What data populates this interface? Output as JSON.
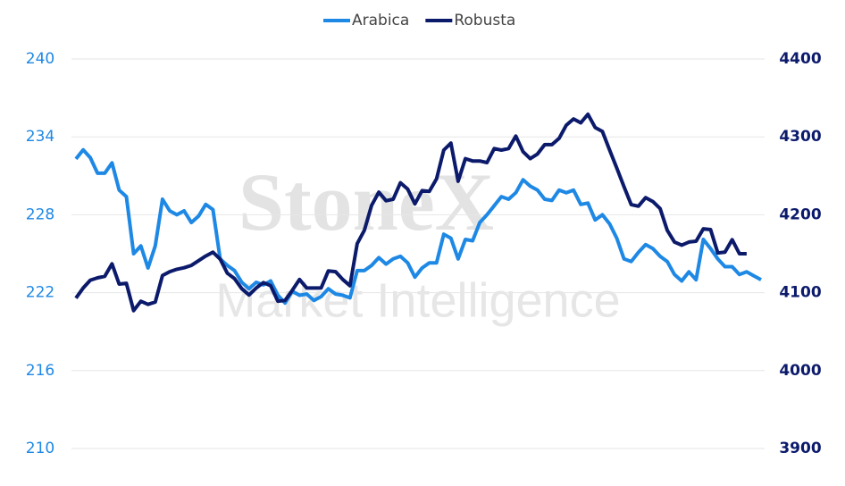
{
  "chart_data": {
    "type": "line",
    "legend": "top",
    "grid": true,
    "watermark": {
      "title": "StoneX",
      "subtitle": "Market Intelligence"
    },
    "ylim": [
      210,
      240
    ],
    "yticks": [
      210,
      216,
      222,
      228,
      234,
      240
    ],
    "y2lim": [
      3900,
      4400
    ],
    "y2ticks": [
      3900,
      4000,
      4100,
      4200,
      4300,
      4400
    ],
    "series": [
      {
        "name": "Arabica",
        "color": "#1e88e5",
        "values": [
          232.3,
          233.0,
          232.4,
          231.2,
          231.2,
          232.0,
          229.9,
          229.4,
          225.0,
          225.6,
          223.9,
          225.6,
          229.2,
          228.3,
          228.0,
          228.3,
          227.4,
          227.9,
          228.8,
          228.4,
          224.6,
          224.1,
          223.7,
          222.8,
          222.3,
          222.8,
          222.6,
          222.9,
          221.8,
          221.2,
          222.1,
          221.8,
          221.9,
          221.4,
          221.7,
          222.3,
          221.9,
          221.8,
          221.6,
          223.7,
          223.7,
          224.1,
          224.7,
          224.2,
          224.6,
          224.8,
          224.3,
          223.2,
          223.9,
          224.3,
          224.3,
          226.5,
          226.2,
          224.6,
          226.1,
          226.0,
          227.4,
          228.0,
          228.7,
          229.4,
          229.2,
          229.7,
          230.7,
          230.2,
          229.9,
          229.2,
          229.1,
          229.9,
          229.7,
          229.9,
          228.8,
          228.9,
          227.6,
          228.0,
          227.3,
          226.2,
          224.6,
          224.4,
          225.1,
          225.7,
          225.4,
          224.8,
          224.4,
          223.4,
          222.9,
          223.6,
          223.0,
          226.1,
          225.4,
          224.6,
          224.0,
          224.0,
          223.4,
          223.6,
          223.3,
          223.0
        ]
      },
      {
        "name": "Robusta",
        "color": "#0c1a6b",
        "axis": "y2",
        "values": [
          4093,
          4106,
          4116,
          4119,
          4121,
          4137,
          4111,
          4112,
          4077,
          4089,
          4085,
          4088,
          4122,
          4127,
          4130,
          4132,
          4135,
          4141,
          4147,
          4152,
          4143,
          4125,
          4118,
          4105,
          4097,
          4106,
          4113,
          4109,
          4089,
          4090,
          4103,
          4117,
          4106,
          4106,
          4106,
          4128,
          4127,
          4117,
          4109,
          4163,
          4180,
          4212,
          4229,
          4218,
          4220,
          4241,
          4233,
          4214,
          4231,
          4230,
          4246,
          4283,
          4292,
          4243,
          4272,
          4269,
          4269,
          4267,
          4285,
          4283,
          4285,
          4301,
          4281,
          4272,
          4278,
          4290,
          4290,
          4298,
          4315,
          4323,
          4318,
          4329,
          4312,
          4307,
          4283,
          4260,
          4236,
          4213,
          4211,
          4222,
          4217,
          4208,
          4180,
          4165,
          4161,
          4165,
          4166,
          4182,
          4181,
          4151,
          4152,
          4168,
          4150,
          4150,
          null,
          null
        ]
      }
    ]
  }
}
